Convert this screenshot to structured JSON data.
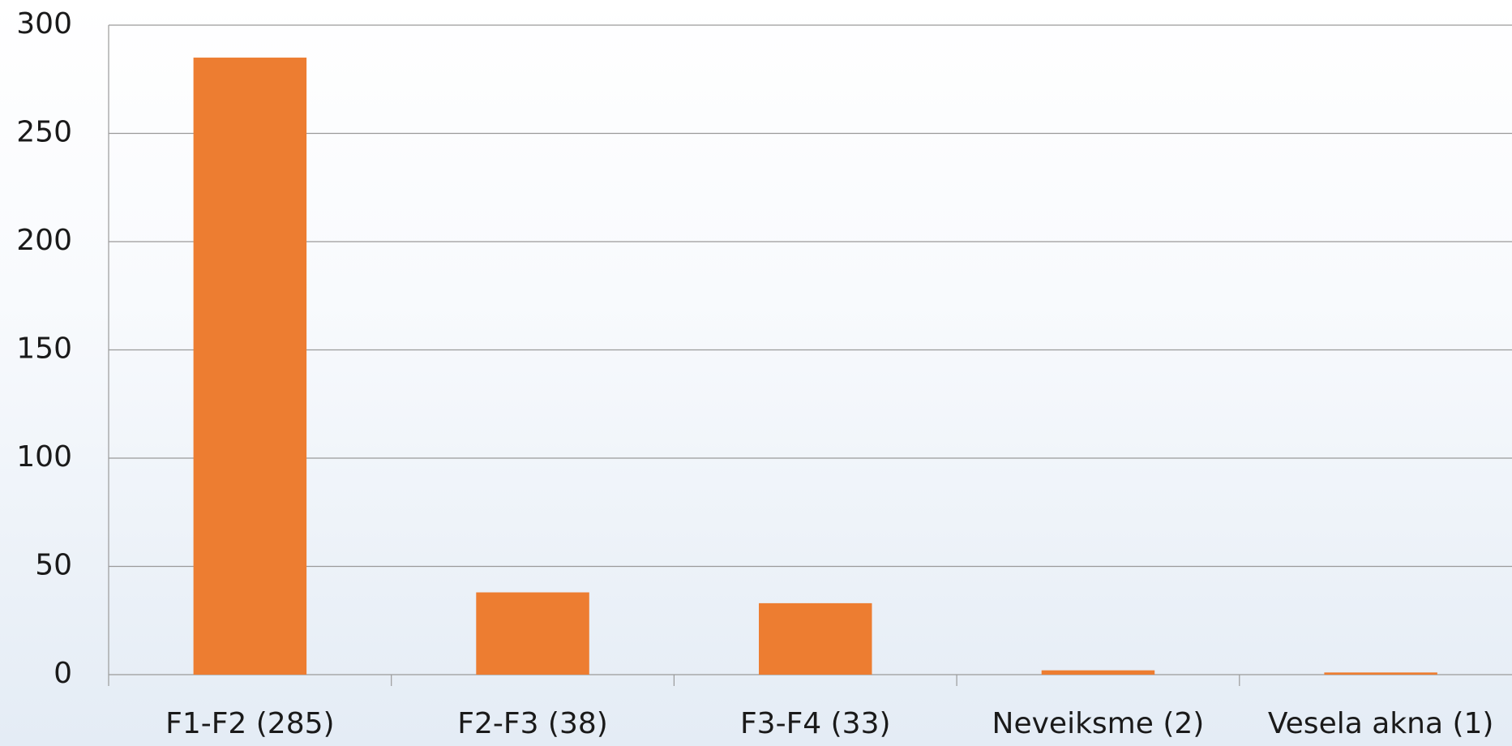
{
  "chart_data": {
    "type": "bar",
    "categories": [
      "F1-F2 (285)",
      "F2-F3 (38)",
      "F3-F4 (33)",
      "Neveiksme (2)",
      "Vesela akna (1)"
    ],
    "values": [
      285,
      38,
      33,
      2,
      1
    ],
    "color": "#ed7d31",
    "ylim": [
      0,
      300
    ],
    "yticks": [
      0,
      50,
      100,
      150,
      200,
      250,
      300
    ],
    "grid": true
  }
}
